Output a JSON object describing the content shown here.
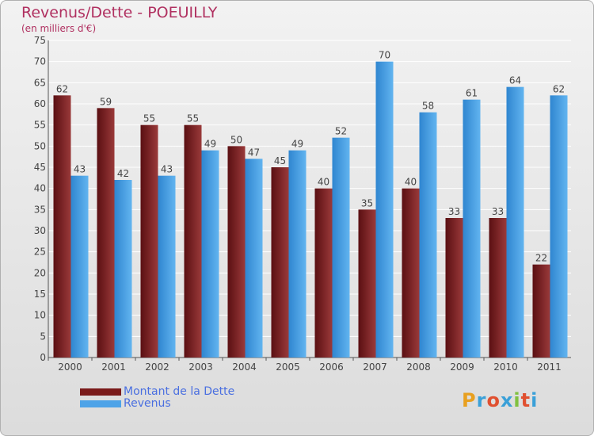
{
  "chart_data": {
    "type": "bar",
    "title": "Revenus/Dette - POEUILLY",
    "subtitle": "(en milliers d'€)",
    "categories": [
      "2000",
      "2001",
      "2002",
      "2003",
      "2004",
      "2005",
      "2006",
      "2007",
      "2008",
      "2009",
      "2010",
      "2011"
    ],
    "series": [
      {
        "name": "Montant de la Dette",
        "values": [
          62,
          59,
          55,
          55,
          50,
          45,
          40,
          35,
          40,
          33,
          33,
          22
        ],
        "color": "#7a1a1a"
      },
      {
        "name": "Revenus",
        "values": [
          43,
          42,
          43,
          49,
          47,
          49,
          52,
          70,
          58,
          61,
          64,
          62
        ],
        "color": "#4da3e8"
      }
    ],
    "ylim": [
      0,
      75
    ],
    "yticks": [
      0,
      5,
      10,
      15,
      20,
      25,
      30,
      35,
      40,
      45,
      50,
      55,
      60,
      65,
      70,
      75
    ],
    "grid": true,
    "legend": "bottom-left"
  },
  "brand": {
    "text": "Proxiti",
    "colors": [
      "#e8a020",
      "#3aa0d8",
      "#e05030",
      "#3aa0d8",
      "#80c040",
      "#e05030",
      "#3aa0d8"
    ]
  }
}
